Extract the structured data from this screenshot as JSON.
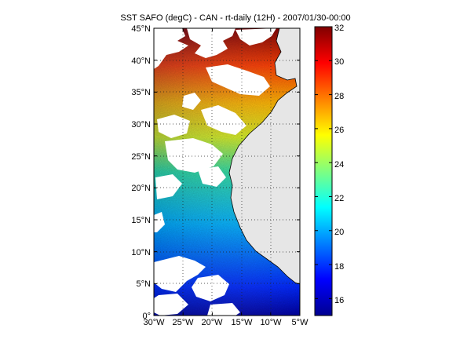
{
  "title": "SST SAFO (degC) - CAN - rt-daily (12H) - 2007/01/30-00:00",
  "map": {
    "lon_range": [
      -30,
      -5
    ],
    "lat_range": [
      0,
      45
    ],
    "lon_ticks": [
      "30°W",
      "25°W",
      "20°W",
      "15°W",
      "10°W",
      "5°W"
    ],
    "lat_ticks": [
      "0°",
      "5°N",
      "10°N",
      "15°N",
      "20°N",
      "25°N",
      "30°N",
      "35°N",
      "40°N",
      "45°N"
    ],
    "grid": true,
    "land_color": "#e6e6e6",
    "cloud_mask_color": "#ffffff"
  },
  "colorbar": {
    "min": 15,
    "max": 32,
    "ticks": [
      "16",
      "18",
      "20",
      "22",
      "24",
      "26",
      "28",
      "30",
      "32"
    ],
    "colormap": "jet"
  }
}
